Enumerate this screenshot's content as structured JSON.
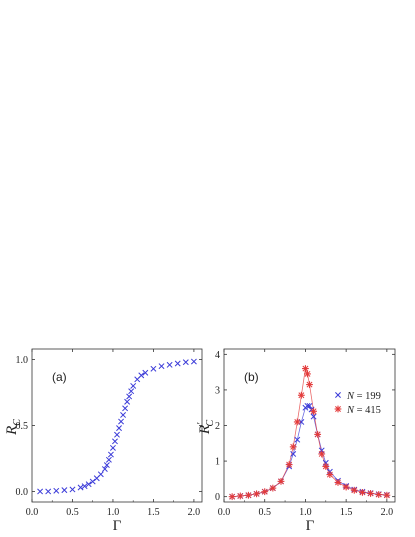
{
  "chart_data": [
    {
      "type": "scatter",
      "panel_label": "(a)",
      "xlabel": "Γ",
      "ylabel": "R",
      "ylabel_sub": "C",
      "xlim": [
        0,
        2.1
      ],
      "ylim": [
        -0.08,
        1.08
      ],
      "xticks": [
        0.0,
        0.5,
        1.0,
        1.5,
        2.0
      ],
      "xtick_labels": [
        "0.0",
        "0.5",
        "1.0",
        "1.5",
        "2.0"
      ],
      "yticks": [
        0.0,
        0.5,
        1.0
      ],
      "ytick_labels": [
        "0.0",
        "0.5",
        "1.0"
      ],
      "series": [
        {
          "color": "#3a3ad8",
          "marker": "x",
          "x": [
            0.1,
            0.2,
            0.3,
            0.4,
            0.5,
            0.6,
            0.65,
            0.7,
            0.75,
            0.8,
            0.85,
            0.9,
            0.925,
            0.95,
            0.975,
            1.0,
            1.025,
            1.05,
            1.075,
            1.1,
            1.125,
            1.15,
            1.175,
            1.2,
            1.225,
            1.25,
            1.3,
            1.35,
            1.4,
            1.5,
            1.6,
            1.7,
            1.8,
            1.9,
            2.0
          ],
          "y": [
            0.0,
            0.0,
            0.005,
            0.01,
            0.015,
            0.03,
            0.04,
            0.055,
            0.075,
            0.1,
            0.13,
            0.17,
            0.2,
            0.24,
            0.28,
            0.33,
            0.38,
            0.43,
            0.48,
            0.53,
            0.58,
            0.63,
            0.68,
            0.72,
            0.76,
            0.8,
            0.85,
            0.88,
            0.9,
            0.93,
            0.95,
            0.96,
            0.97,
            0.98,
            0.985
          ]
        }
      ]
    },
    {
      "type": "line",
      "panel_label": "(b)",
      "xlabel": "Γ",
      "ylabel": "R",
      "ylabel_sub": "C",
      "ylabel_prime": "′",
      "xlim": [
        0,
        2.1
      ],
      "ylim": [
        -0.15,
        4.15
      ],
      "xticks": [
        0.0,
        0.5,
        1.0,
        1.5,
        2.0
      ],
      "xtick_labels": [
        "0.0",
        "0.5",
        "1.0",
        "1.5",
        "2.0"
      ],
      "yticks": [
        0,
        1,
        2,
        3,
        4
      ],
      "ytick_labels": [
        "0",
        "1",
        "2",
        "3",
        "4"
      ],
      "legend_position": "right",
      "series": [
        {
          "name_var": "N",
          "name_rest": " = 199",
          "color": "#3a3ad8",
          "marker": "x",
          "x": [
            0.1,
            0.2,
            0.3,
            0.4,
            0.5,
            0.6,
            0.7,
            0.8,
            0.85,
            0.9,
            0.95,
            1.0,
            1.025,
            1.05,
            1.075,
            1.1,
            1.15,
            1.2,
            1.25,
            1.3,
            1.4,
            1.5,
            1.6,
            1.7,
            1.8,
            1.9,
            2.0
          ],
          "y": [
            0.0,
            0.02,
            0.04,
            0.08,
            0.14,
            0.24,
            0.43,
            0.85,
            1.2,
            1.6,
            2.1,
            2.5,
            2.55,
            2.55,
            2.45,
            2.25,
            1.75,
            1.3,
            0.95,
            0.7,
            0.45,
            0.3,
            0.2,
            0.14,
            0.1,
            0.07,
            0.05
          ]
        },
        {
          "name_var": "N",
          "name_rest": " = 415",
          "color": "#e33a3a",
          "marker": "asterisk",
          "x": [
            0.1,
            0.2,
            0.3,
            0.4,
            0.5,
            0.6,
            0.7,
            0.8,
            0.85,
            0.9,
            0.95,
            1.0,
            1.025,
            1.05,
            1.1,
            1.15,
            1.2,
            1.25,
            1.3,
            1.4,
            1.5,
            1.6,
            1.7,
            1.8,
            1.9,
            2.0
          ],
          "y": [
            0.0,
            0.02,
            0.04,
            0.08,
            0.14,
            0.24,
            0.43,
            0.9,
            1.4,
            2.1,
            2.85,
            3.6,
            3.45,
            3.15,
            2.4,
            1.75,
            1.2,
            0.85,
            0.62,
            0.4,
            0.27,
            0.18,
            0.12,
            0.09,
            0.06,
            0.04
          ]
        }
      ]
    }
  ]
}
